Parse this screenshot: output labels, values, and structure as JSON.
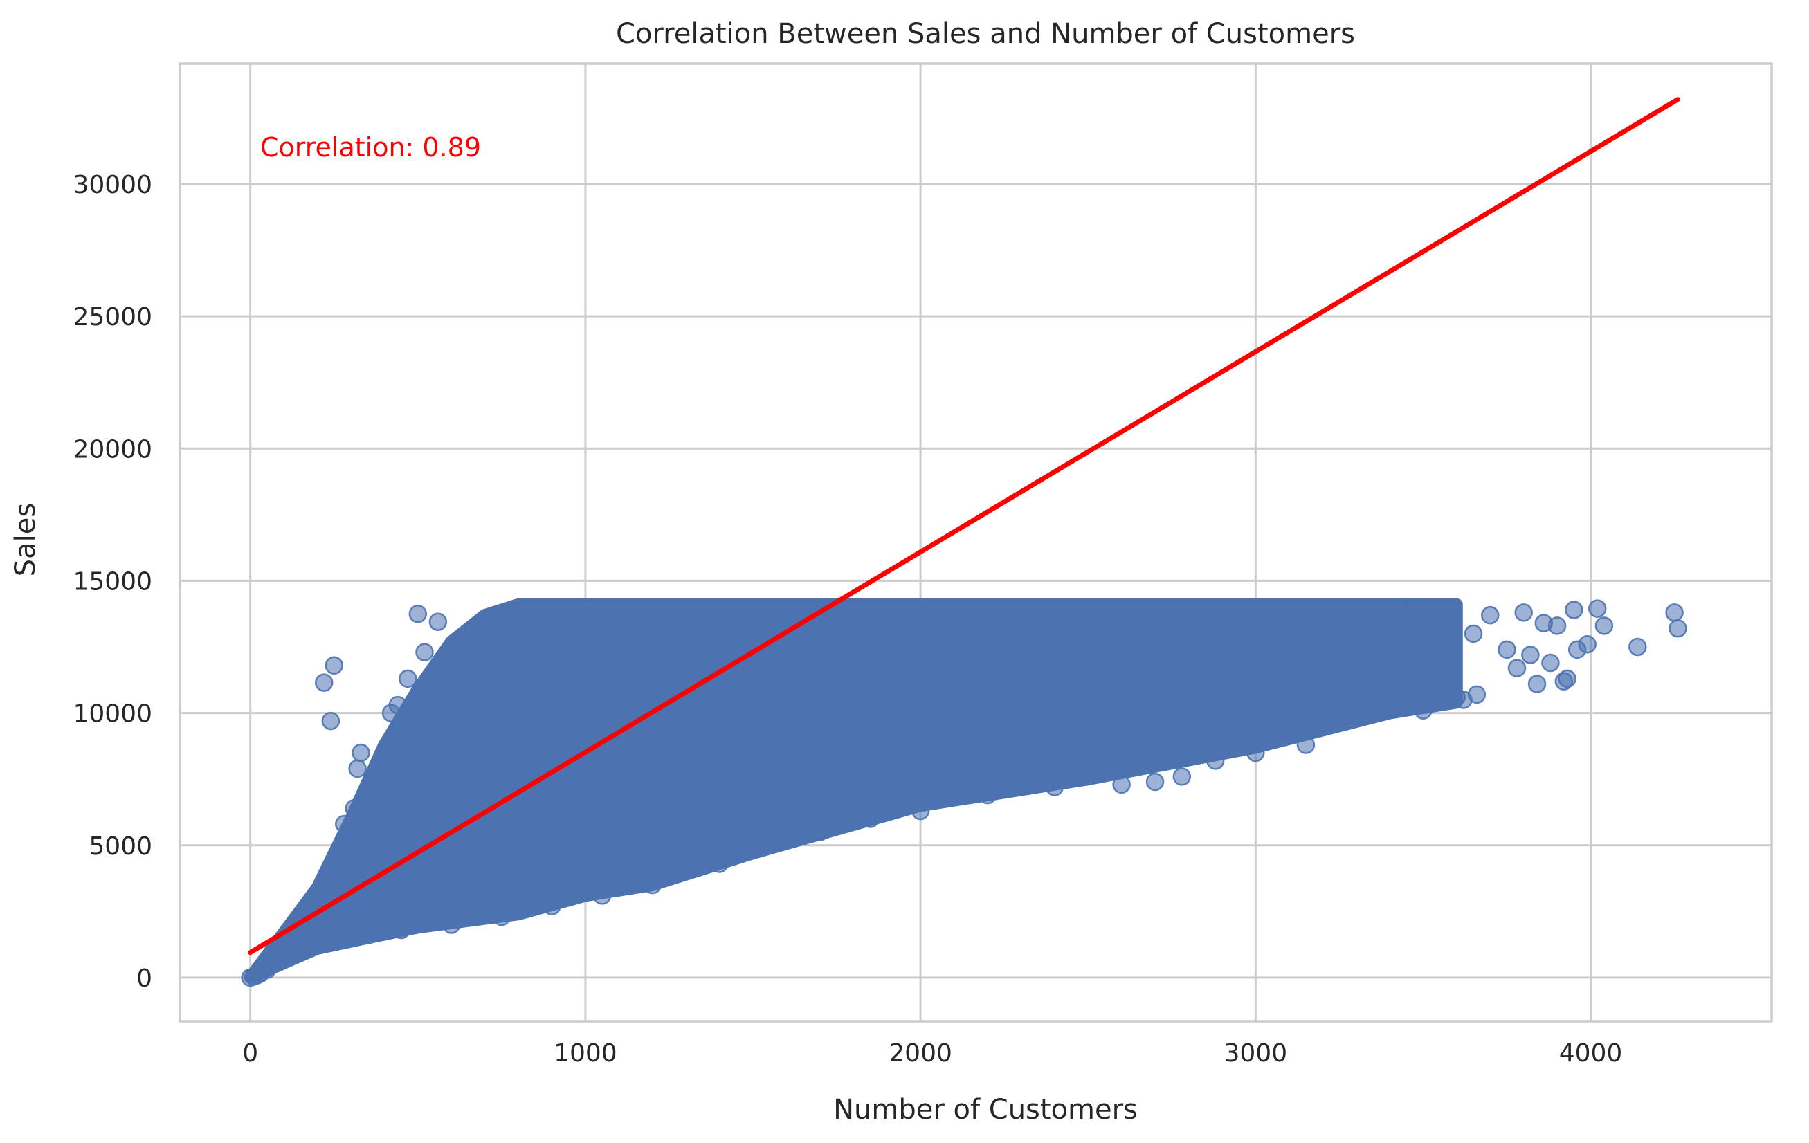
{
  "chart_data": {
    "type": "scatter",
    "title": "Correlation Between Sales and Number of Customers",
    "xlabel": "Number of Customers",
    "ylabel": "Sales",
    "xlim": [
      -210,
      4540
    ],
    "ylim": [
      -1650,
      34550
    ],
    "xticks": [
      0,
      1000,
      2000,
      3000,
      4000
    ],
    "yticks": [
      0,
      5000,
      10000,
      15000,
      20000,
      25000,
      30000
    ],
    "grid": true,
    "colors": {
      "points": "#4c72b0",
      "regression": "#ff0000",
      "grid": "#cccccc",
      "text": "#262626"
    },
    "annotation": {
      "text": "Correlation: 0.89",
      "color": "#ff0000"
    },
    "regression_line": {
      "x": [
        0,
        4260
      ],
      "y": [
        950,
        33200
      ]
    },
    "point_cloud": {
      "upper_boundary": [
        [
          0,
          0
        ],
        [
          100,
          1700
        ],
        [
          200,
          3400
        ],
        [
          300,
          6000
        ],
        [
          400,
          8800
        ],
        [
          500,
          10900
        ],
        [
          600,
          12700
        ],
        [
          700,
          13700
        ],
        [
          800,
          14100
        ],
        [
          3600,
          14100
        ]
      ],
      "lower_boundary": [
        [
          0,
          0
        ],
        [
          200,
          1100
        ],
        [
          500,
          1900
        ],
        [
          800,
          2400
        ],
        [
          1000,
          3100
        ],
        [
          1200,
          3500
        ],
        [
          1500,
          4700
        ],
        [
          2000,
          6500
        ],
        [
          2500,
          7500
        ],
        [
          3000,
          8700
        ],
        [
          3400,
          10000
        ],
        [
          3600,
          10400
        ]
      ]
    },
    "points": [
      [
        0,
        0
      ],
      [
        10,
        40
      ],
      [
        20,
        90
      ],
      [
        30,
        150
      ],
      [
        50,
        300
      ],
      [
        220,
        11150
      ],
      [
        250,
        11800
      ],
      [
        240,
        9700
      ],
      [
        330,
        8500
      ],
      [
        320,
        7900
      ],
      [
        280,
        5800
      ],
      [
        310,
        6400
      ],
      [
        500,
        13750
      ],
      [
        560,
        13450
      ],
      [
        520,
        12300
      ],
      [
        470,
        11300
      ],
      [
        420,
        10000
      ],
      [
        440,
        10300
      ],
      [
        430,
        9200
      ],
      [
        460,
        9500
      ],
      [
        3650,
        13000
      ],
      [
        3700,
        13700
      ],
      [
        3750,
        12400
      ],
      [
        3780,
        11700
      ],
      [
        3800,
        13800
      ],
      [
        3820,
        12200
      ],
      [
        3840,
        11100
      ],
      [
        3860,
        13400
      ],
      [
        3880,
        11900
      ],
      [
        3900,
        13300
      ],
      [
        3920,
        11200
      ],
      [
        3930,
        11300
      ],
      [
        3950,
        13900
      ],
      [
        3960,
        12400
      ],
      [
        3990,
        12600
      ],
      [
        4020,
        13950
      ],
      [
        4040,
        13300
      ],
      [
        4140,
        12500
      ],
      [
        4250,
        13800
      ],
      [
        4260,
        13200
      ],
      [
        3500,
        10100
      ],
      [
        3420,
        10300
      ],
      [
        3300,
        10400
      ],
      [
        3150,
        8800
      ],
      [
        3000,
        8500
      ],
      [
        2880,
        8200
      ],
      [
        2780,
        7600
      ],
      [
        2700,
        7400
      ],
      [
        2600,
        7300
      ],
      [
        2400,
        7200
      ],
      [
        2200,
        6900
      ],
      [
        2100,
        7000
      ],
      [
        2000,
        6300
      ],
      [
        1850,
        6000
      ],
      [
        1700,
        5500
      ],
      [
        1550,
        5000
      ],
      [
        1400,
        4300
      ],
      [
        1200,
        3500
      ],
      [
        1050,
        3100
      ],
      [
        900,
        2700
      ],
      [
        750,
        2300
      ],
      [
        600,
        2000
      ],
      [
        450,
        1800
      ],
      [
        350,
        1600
      ],
      [
        3560,
        10900
      ],
      [
        3600,
        10600
      ],
      [
        3620,
        10500
      ],
      [
        3660,
        10700
      ],
      [
        3100,
        12900
      ],
      [
        3200,
        13700
      ],
      [
        3300,
        13900
      ],
      [
        3450,
        14000
      ],
      [
        3550,
        13900
      ],
      [
        3480,
        11800
      ],
      [
        3380,
        11400
      ],
      [
        3250,
        11100
      ]
    ]
  }
}
